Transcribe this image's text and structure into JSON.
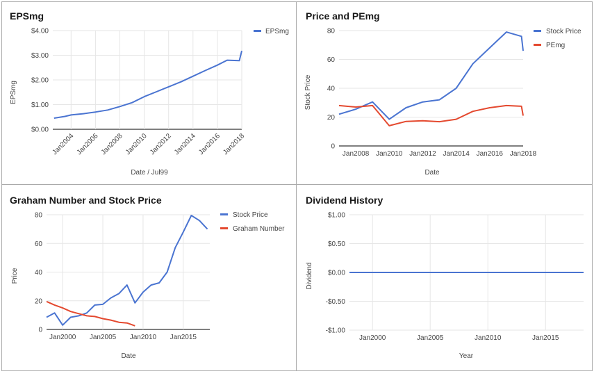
{
  "colors": {
    "blue": "#4a74d1",
    "red": "#e4492f",
    "grid": "#e6e6e6",
    "axis": "#333333",
    "text": "#444444",
    "title": "#1a1a1a",
    "border": "#aaaaaa"
  },
  "chart_data": [
    {
      "id": "epsmg",
      "type": "line",
      "title": "EPSmg",
      "xlabel": "Date / Jul99",
      "ylabel": "EPSmg",
      "xlim": [
        2002.5,
        2018.0
      ],
      "ylim": [
        0,
        4
      ],
      "xticks": [
        {
          "v": 2004,
          "label": "Jan2004"
        },
        {
          "v": 2006,
          "label": "Jan2006"
        },
        {
          "v": 2008,
          "label": "Jan2008"
        },
        {
          "v": 2010,
          "label": "Jan2010"
        },
        {
          "v": 2012,
          "label": "Jan2012"
        },
        {
          "v": 2014,
          "label": "Jan2014"
        },
        {
          "v": 2016,
          "label": "Jan2016"
        },
        {
          "v": 2018,
          "label": "Jan2018"
        }
      ],
      "yticks": [
        {
          "v": 0,
          "label": "$0.00"
        },
        {
          "v": 1,
          "label": "$1.00"
        },
        {
          "v": 2,
          "label": "$2.00"
        },
        {
          "v": 3,
          "label": "$3.00"
        },
        {
          "v": 4,
          "label": "$4.00"
        }
      ],
      "grid": true,
      "legend": "right-top",
      "series": [
        {
          "name": "EPSmg",
          "color": "#4a74d1",
          "points": [
            [
              2002.6,
              0.45
            ],
            [
              2003.5,
              0.52
            ],
            [
              2004.0,
              0.58
            ],
            [
              2005.0,
              0.63
            ],
            [
              2006.0,
              0.7
            ],
            [
              2007.0,
              0.78
            ],
            [
              2008.0,
              0.92
            ],
            [
              2009.0,
              1.08
            ],
            [
              2010.0,
              1.32
            ],
            [
              2011.0,
              1.52
            ],
            [
              2012.0,
              1.72
            ],
            [
              2013.0,
              1.92
            ],
            [
              2014.0,
              2.15
            ],
            [
              2015.0,
              2.38
            ],
            [
              2016.0,
              2.6
            ],
            [
              2016.8,
              2.8
            ],
            [
              2017.8,
              2.78
            ],
            [
              2018.0,
              3.18
            ]
          ]
        }
      ]
    },
    {
      "id": "price-pemg",
      "type": "line",
      "title": "Price and PEmg",
      "xlabel": "Date",
      "ylabel": "Stock Price",
      "xlim": [
        2007.0,
        2018.0
      ],
      "ylim": [
        0,
        80
      ],
      "xticks": [
        {
          "v": 2008,
          "label": "Jan2008"
        },
        {
          "v": 2010,
          "label": "Jan2010"
        },
        {
          "v": 2012,
          "label": "Jan2012"
        },
        {
          "v": 2014,
          "label": "Jan2014"
        },
        {
          "v": 2016,
          "label": "Jan2016"
        },
        {
          "v": 2018,
          "label": "Jan2018"
        }
      ],
      "yticks": [
        {
          "v": 0,
          "label": "0"
        },
        {
          "v": 20,
          "label": "20"
        },
        {
          "v": 40,
          "label": "40"
        },
        {
          "v": 60,
          "label": "60"
        },
        {
          "v": 80,
          "label": "80"
        }
      ],
      "grid": false,
      "legend": "right-top",
      "series": [
        {
          "name": "Stock Price",
          "color": "#4a74d1",
          "points": [
            [
              2007.0,
              22
            ],
            [
              2008.0,
              25.5
            ],
            [
              2009.0,
              30.5
            ],
            [
              2010.0,
              18.5
            ],
            [
              2011.0,
              26.5
            ],
            [
              2012.0,
              30.5
            ],
            [
              2013.0,
              32
            ],
            [
              2014.0,
              40
            ],
            [
              2015.0,
              57
            ],
            [
              2016.0,
              68
            ],
            [
              2017.0,
              79
            ],
            [
              2017.9,
              76
            ],
            [
              2018.0,
              66
            ]
          ]
        },
        {
          "name": "PEmg",
          "color": "#e4492f",
          "points": [
            [
              2007.0,
              28
            ],
            [
              2008.0,
              27
            ],
            [
              2009.0,
              28
            ],
            [
              2010.0,
              14
            ],
            [
              2011.0,
              17
            ],
            [
              2012.0,
              17.5
            ],
            [
              2013.0,
              16.8
            ],
            [
              2014.0,
              18.5
            ],
            [
              2015.0,
              24
            ],
            [
              2016.0,
              26.5
            ],
            [
              2017.0,
              28
            ],
            [
              2017.9,
              27.5
            ],
            [
              2018.0,
              21
            ]
          ]
        }
      ]
    },
    {
      "id": "graham",
      "type": "line",
      "title": "Graham Number and Stock Price",
      "xlabel": "Date",
      "ylabel": "Price",
      "xlim": [
        1998.0,
        2018.3
      ],
      "ylim": [
        0,
        80
      ],
      "xticks": [
        {
          "v": 2000,
          "label": "Jan2000"
        },
        {
          "v": 2005,
          "label": "Jan2005"
        },
        {
          "v": 2010,
          "label": "Jan2010"
        },
        {
          "v": 2015,
          "label": "Jan2015"
        }
      ],
      "yticks": [
        {
          "v": 0,
          "label": "0"
        },
        {
          "v": 20,
          "label": "20"
        },
        {
          "v": 40,
          "label": "40"
        },
        {
          "v": 60,
          "label": "60"
        },
        {
          "v": 80,
          "label": "80"
        }
      ],
      "grid": true,
      "legend": "right-top",
      "series": [
        {
          "name": "Stock Price",
          "color": "#4a74d1",
          "points": [
            [
              1998.0,
              8.5
            ],
            [
              1999.0,
              11.5
            ],
            [
              2000.0,
              3
            ],
            [
              2001.0,
              8.5
            ],
            [
              2002.0,
              9.5
            ],
            [
              2003.0,
              11.5
            ],
            [
              2004.0,
              17
            ],
            [
              2005.0,
              17.5
            ],
            [
              2006.0,
              22
            ],
            [
              2007.0,
              25
            ],
            [
              2008.0,
              31
            ],
            [
              2009.0,
              18.5
            ],
            [
              2010.0,
              26
            ],
            [
              2011.0,
              31
            ],
            [
              2012.0,
              32.5
            ],
            [
              2013.0,
              40
            ],
            [
              2014.0,
              57
            ],
            [
              2015.0,
              68
            ],
            [
              2016.0,
              79.5
            ],
            [
              2017.0,
              76
            ],
            [
              2018.0,
              70
            ]
          ]
        },
        {
          "name": "Graham Number",
          "color": "#e4492f",
          "points": [
            [
              1998.0,
              19.5
            ],
            [
              1999.0,
              17
            ],
            [
              2000.0,
              15
            ],
            [
              2001.0,
              12.5
            ],
            [
              2002.0,
              11
            ],
            [
              2003.0,
              9.5
            ],
            [
              2004.0,
              9
            ],
            [
              2005.0,
              7.5
            ],
            [
              2006.0,
              6.5
            ],
            [
              2007.0,
              5
            ],
            [
              2008.0,
              4.5
            ],
            [
              2009.0,
              2.5
            ]
          ]
        }
      ]
    },
    {
      "id": "dividend",
      "type": "line",
      "title": "Dividend History",
      "xlabel": "Year",
      "ylabel": "Dividend",
      "xlim": [
        1998.0,
        2018.3
      ],
      "ylim": [
        -1,
        1
      ],
      "xticks": [
        {
          "v": 2000,
          "label": "Jan2000"
        },
        {
          "v": 2005,
          "label": "Jan2005"
        },
        {
          "v": 2010,
          "label": "Jan2010"
        },
        {
          "v": 2015,
          "label": "Jan2015"
        }
      ],
      "yticks": [
        {
          "v": -1,
          "label": "-$1.00"
        },
        {
          "v": -0.5,
          "label": "-$0.50"
        },
        {
          "v": 0,
          "label": "$0.00"
        },
        {
          "v": 0.5,
          "label": "$0.50"
        },
        {
          "v": 1,
          "label": "$1.00"
        }
      ],
      "grid": true,
      "legend": "none",
      "series": [
        {
          "color": "#4a74d1",
          "points": [
            [
              1998.0,
              0
            ],
            [
              2018.3,
              0
            ]
          ]
        }
      ]
    }
  ]
}
